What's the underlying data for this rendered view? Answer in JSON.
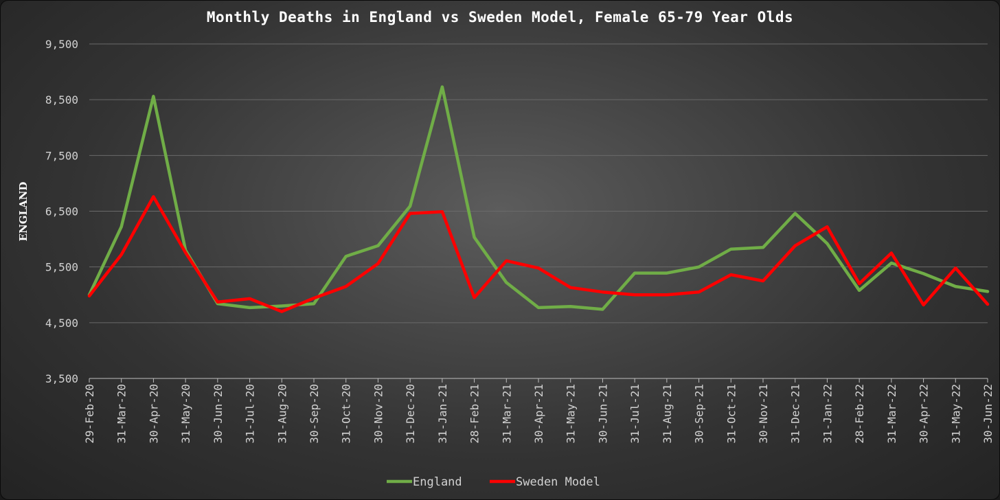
{
  "chart_data": {
    "type": "line",
    "title": "Monthly Deaths in England vs Sweden Model, Female 65-79 Year Olds",
    "ylabel": "ENGLAND",
    "xlabel": "",
    "ylim": [
      3500,
      9500
    ],
    "yticks": [
      3500,
      4500,
      5500,
      6500,
      7500,
      8500,
      9500
    ],
    "ytick_labels": [
      "3,500",
      "4,500",
      "5,500",
      "6,500",
      "7,500",
      "8,500",
      "9,500"
    ],
    "grid": true,
    "legend_position": "bottom",
    "categories": [
      "29-Feb-20",
      "31-Mar-20",
      "30-Apr-20",
      "31-May-20",
      "30-Jun-20",
      "31-Jul-20",
      "31-Aug-20",
      "30-Sep-20",
      "31-Oct-20",
      "30-Nov-20",
      "31-Dec-20",
      "31-Jan-21",
      "28-Feb-21",
      "31-Mar-21",
      "30-Apr-21",
      "31-May-21",
      "30-Jun-21",
      "31-Jul-21",
      "31-Aug-21",
      "30-Sep-21",
      "31-Oct-21",
      "30-Nov-21",
      "31-Dec-21",
      "31-Jan-22",
      "28-Feb-22",
      "31-Mar-22",
      "30-Apr-22",
      "31-May-22",
      "30-Jun-22"
    ],
    "series": [
      {
        "name": "England",
        "color": "#70ad47",
        "values": [
          5000,
          6220,
          8560,
          5800,
          4840,
          4770,
          4800,
          4840,
          5690,
          5880,
          6590,
          8730,
          6030,
          5220,
          4770,
          4790,
          4740,
          5390,
          5390,
          5500,
          5820,
          5850,
          6460,
          5920,
          5080,
          5570,
          5380,
          5150,
          5060
        ]
      },
      {
        "name": "Sweden Model",
        "color": "#ff0000",
        "values": [
          4980,
          5720,
          6760,
          5760,
          4870,
          4930,
          4700,
          4940,
          5150,
          5560,
          6460,
          6490,
          4950,
          5610,
          5480,
          5130,
          5050,
          5000,
          5000,
          5050,
          5360,
          5250,
          5880,
          6220,
          5200,
          5750,
          4820,
          5480,
          4830
        ]
      }
    ]
  }
}
